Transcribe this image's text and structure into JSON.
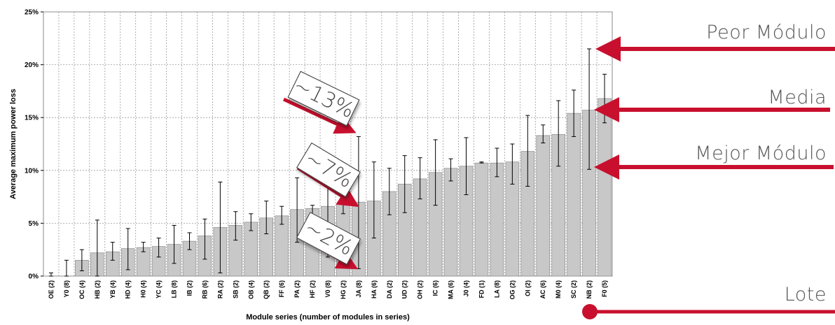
{
  "chart_data": {
    "type": "bar",
    "xlabel": "Module series (number of modules in series)",
    "ylabel": "Average maximum power loss",
    "ylim": [
      0,
      25
    ],
    "yticks": [
      "0%",
      "5%",
      "10%",
      "15%",
      "20%",
      "25%"
    ],
    "grid": true,
    "categories": [
      "OE (2)",
      "Y0 (8)",
      "OC (4)",
      "HB (2)",
      "YB (4)",
      "HD (4)",
      "H0 (4)",
      "YC (4)",
      "LB (8)",
      "IB (2)",
      "RB (6)",
      "RA (2)",
      "SB (2)",
      "OB (4)",
      "QB (2)",
      "FF (6)",
      "PA (2)",
      "HF (2)",
      "V0 (8)",
      "HG (2)",
      "JA (8)",
      "HA (6)",
      "DA (2)",
      "UD (2)",
      "OH (2)",
      "IC (6)",
      "MA (6)",
      "J0 (4)",
      "FD (1)",
      "LA (8)",
      "OG (2)",
      "OI (2)",
      "AC (6)",
      "M0 (4)",
      "SC (2)",
      "NB (2)",
      "F0 (5)"
    ],
    "series": [
      {
        "values": [
          0,
          0,
          1.5,
          2.2,
          2.3,
          2.6,
          2.7,
          2.8,
          3.0,
          3.3,
          3.8,
          4.6,
          4.8,
          5.1,
          5.5,
          5.7,
          6.3,
          6.4,
          6.6,
          6.8,
          7.0,
          7.1,
          8.0,
          8.7,
          9.2,
          9.8,
          10.2,
          10.4,
          10.7,
          10.7,
          10.8,
          11.8,
          13.3,
          13.4,
          15.4,
          15.7,
          16.8
        ],
        "err_low": [
          0,
          0,
          0.5,
          0,
          1.5,
          0.6,
          2.3,
          1.8,
          1.2,
          2.5,
          1.6,
          0.3,
          3.4,
          4.3,
          4.0,
          4.9,
          3.2,
          5.8,
          1.8,
          5.9,
          0.7,
          3.6,
          5.8,
          6.0,
          7.3,
          6.7,
          9.0,
          7.7,
          10.7,
          9.4,
          8.7,
          8.5,
          12.6,
          10.4,
          13.2,
          10.1,
          14.5
        ],
        "err_high": [
          0.3,
          1.5,
          2.5,
          5.3,
          3.2,
          4.5,
          3.2,
          3.6,
          4.8,
          4.1,
          5.4,
          8.9,
          6.1,
          5.9,
          7.1,
          6.6,
          9.3,
          6.7,
          8.5,
          7.3,
          13.2,
          10.8,
          10.2,
          11.4,
          11.2,
          12.9,
          11.1,
          13.1,
          10.8,
          12.1,
          12.5,
          15.2,
          14.3,
          16.6,
          17.6,
          21.5,
          19.1
        ]
      }
    ]
  },
  "annotations": {
    "callouts": [
      "~13%",
      "~7%",
      "~2%"
    ],
    "right_labels": {
      "worst": "Peor Módulo",
      "mean": "Media",
      "best": "Mejor Módulo",
      "batch": "Lote"
    }
  },
  "colors": {
    "bar": "#c8c8c8",
    "accent": "#c8102e",
    "text": "#555555"
  }
}
